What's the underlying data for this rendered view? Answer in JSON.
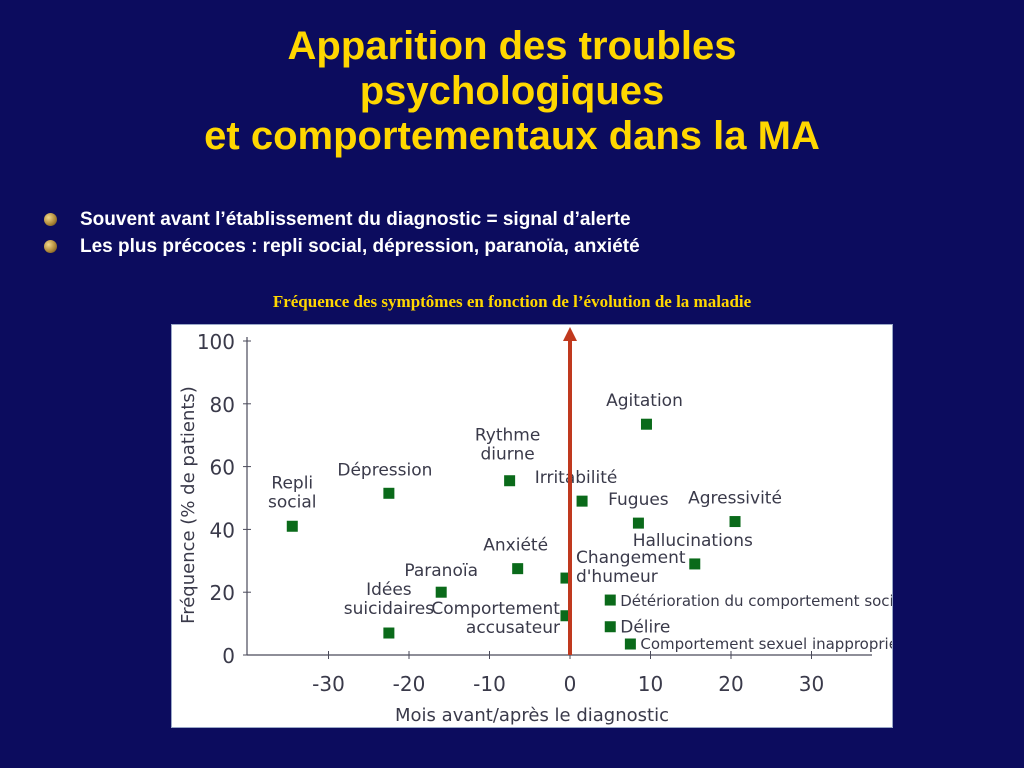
{
  "title": {
    "line1": "Apparition des troubles",
    "line2": "psychologiques",
    "line3": "et comportementaux dans la MA"
  },
  "bullets": [
    "Souvent avant l’établissement du diagnostic = signal d’alerte",
    "Les plus précoces : repli social, dépression, paranoïa, anxiété"
  ],
  "caption": "Fréquence des symptômes en fonction de l’évolution de la maladie",
  "colors": {
    "background": "#0c0c5e",
    "title": "#ffd700",
    "marker": "#0a6a1a",
    "diagnostic_line": "#c0391e"
  },
  "chart_data": {
    "type": "scatter",
    "xlabel": "Mois avant/après le diagnostic",
    "ylabel": "Fréquence (% de patients)",
    "xlim": [
      -40,
      33
    ],
    "ylim": [
      0,
      100
    ],
    "x_ticks": [
      "-30",
      "-20",
      "-10",
      "0",
      "10",
      "20",
      "30"
    ],
    "y_ticks": [
      "0",
      "20",
      "40",
      "60",
      "80",
      "100"
    ],
    "reference_line_x": 0,
    "points": [
      {
        "label": "Repli social",
        "x": -34.5,
        "y": 41
      },
      {
        "label": "Dépression",
        "x": -22.5,
        "y": 51.5
      },
      {
        "label": "Rythme diurne",
        "x": -7.5,
        "y": 55.5
      },
      {
        "label": "Irritabilité",
        "x": 1.5,
        "y": 49
      },
      {
        "label": "Agitation",
        "x": 9.5,
        "y": 73.5
      },
      {
        "label": "Fugues",
        "x": 8.5,
        "y": 42
      },
      {
        "label": "Agressivité",
        "x": 20.5,
        "y": 42.5
      },
      {
        "label": "Hallucinations",
        "x": 15.5,
        "y": 29
      },
      {
        "label": "Anxiété",
        "x": -6.5,
        "y": 27.5
      },
      {
        "label": "Changement d'humeur",
        "x": -0.5,
        "y": 24.5
      },
      {
        "label": "Paranoïa",
        "x": -16,
        "y": 20
      },
      {
        "label": "Détérioration du comportement social",
        "x": 5,
        "y": 17.5
      },
      {
        "label": "Idées suicidaires",
        "x": -22.5,
        "y": 7
      },
      {
        "label": "Comportement accusateur",
        "x": -0.5,
        "y": 12.5
      },
      {
        "label": "Délire",
        "x": 5,
        "y": 9
      },
      {
        "label": "Comportement sexuel inapproprié",
        "x": 7.5,
        "y": 3.5
      }
    ]
  }
}
